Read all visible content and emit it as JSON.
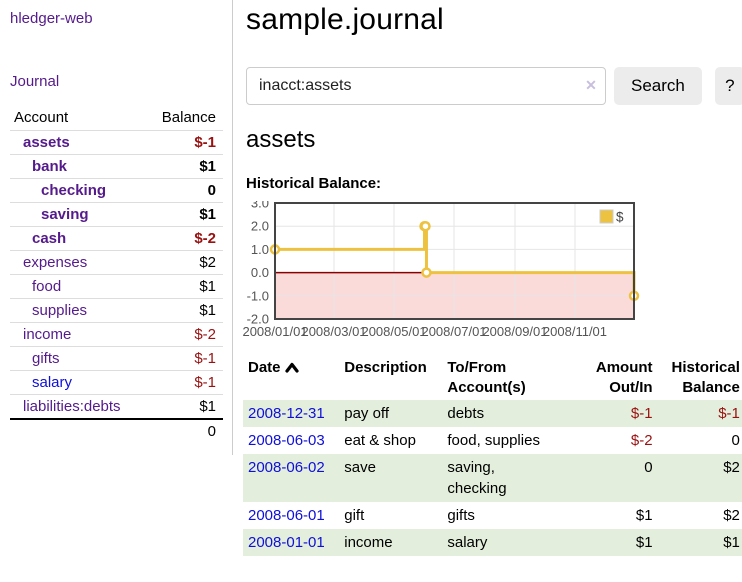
{
  "app": {
    "brand": "hledger-web",
    "nav": {
      "journal": "Journal"
    }
  },
  "sidebar": {
    "header": {
      "account": "Account",
      "balance": "Balance"
    },
    "accounts": [
      {
        "name": "assets",
        "balance": "$-1",
        "depth": 1
      },
      {
        "name": "bank",
        "balance": "$1",
        "depth": 2
      },
      {
        "name": "checking",
        "balance": "0",
        "depth": 3
      },
      {
        "name": "saving",
        "balance": "$1",
        "depth": 3
      },
      {
        "name": "cash",
        "balance": "$-2",
        "depth": 2
      },
      {
        "name": "expenses",
        "balance": "$2",
        "depth": 1
      },
      {
        "name": "food",
        "balance": "$1",
        "depth": 2
      },
      {
        "name": "supplies",
        "balance": "$1",
        "depth": 2
      },
      {
        "name": "income",
        "balance": "$-2",
        "depth": 1
      },
      {
        "name": "gifts",
        "balance": "$-1",
        "depth": 2
      },
      {
        "name": "salary",
        "balance": "$-1",
        "depth": 2
      },
      {
        "name": "liabilities:debts",
        "balance": "$1",
        "depth": 1
      }
    ],
    "total": "0"
  },
  "header": {
    "title": "sample.journal"
  },
  "search": {
    "value": "inacct:assets",
    "clear_icon": "✕",
    "search_button": "Search",
    "help_button": "?"
  },
  "account_page": {
    "heading": "assets",
    "chart_label": "Historical Balance:"
  },
  "chart_data": {
    "type": "line",
    "style": "steps-with-markers",
    "xrange": [
      "2008-01-01",
      "2008-12-31"
    ],
    "ylim": [
      -2.0,
      3.0
    ],
    "y_ticks": [
      3.0,
      2.0,
      1.0,
      0.0,
      -1.0,
      -2.0
    ],
    "x_ticks": [
      {
        "date": "2008-01-01",
        "label": "2008/01/01"
      },
      {
        "date": "2008-03-01",
        "label": "2008/03/01"
      },
      {
        "date": "2008-05-01",
        "label": "2008/05/01"
      },
      {
        "date": "2008-07-01",
        "label": "2008/07/01"
      },
      {
        "date": "2008-09-01",
        "label": "2008/09/01"
      },
      {
        "date": "2008-11-01",
        "label": "2008/11/01"
      }
    ],
    "series": [
      {
        "name": "$",
        "points": [
          [
            "2008-01-01",
            1
          ],
          [
            "2008-06-01",
            2
          ],
          [
            "2008-06-02",
            2
          ],
          [
            "2008-06-03",
            0
          ],
          [
            "2008-12-31",
            -1
          ]
        ]
      }
    ],
    "legend_position": "top-right",
    "grid": true,
    "colors": {
      "series": "#EDC240",
      "marker_fill": "#ffffff",
      "negative_region": "#fbdada",
      "zero_line": "#8b0000",
      "grid_line": "#e6e6e6",
      "border": "#444444",
      "tick_text": "#545454"
    }
  },
  "register": {
    "columns": {
      "date": "Date",
      "description": "Description",
      "account": "To/From Account(s)",
      "amount": "Amount Out/In",
      "balance": "Historical Balance"
    },
    "rows": [
      {
        "date": "2008-12-31",
        "description": "pay off",
        "accounts": "debts",
        "amount": "$-1",
        "balance": "$-1"
      },
      {
        "date": "2008-06-03",
        "description": "eat & shop",
        "accounts": "food, supplies",
        "amount": "$-2",
        "balance": "0"
      },
      {
        "date": "2008-06-02",
        "description": "save",
        "accounts": "saving,\nchecking",
        "amount": "0",
        "balance": "$2"
      },
      {
        "date": "2008-06-01",
        "description": "gift",
        "accounts": "gifts",
        "amount": "$1",
        "balance": "$2"
      },
      {
        "date": "2008-01-01",
        "description": "income",
        "accounts": "salary",
        "amount": "$1",
        "balance": "$1"
      }
    ]
  }
}
